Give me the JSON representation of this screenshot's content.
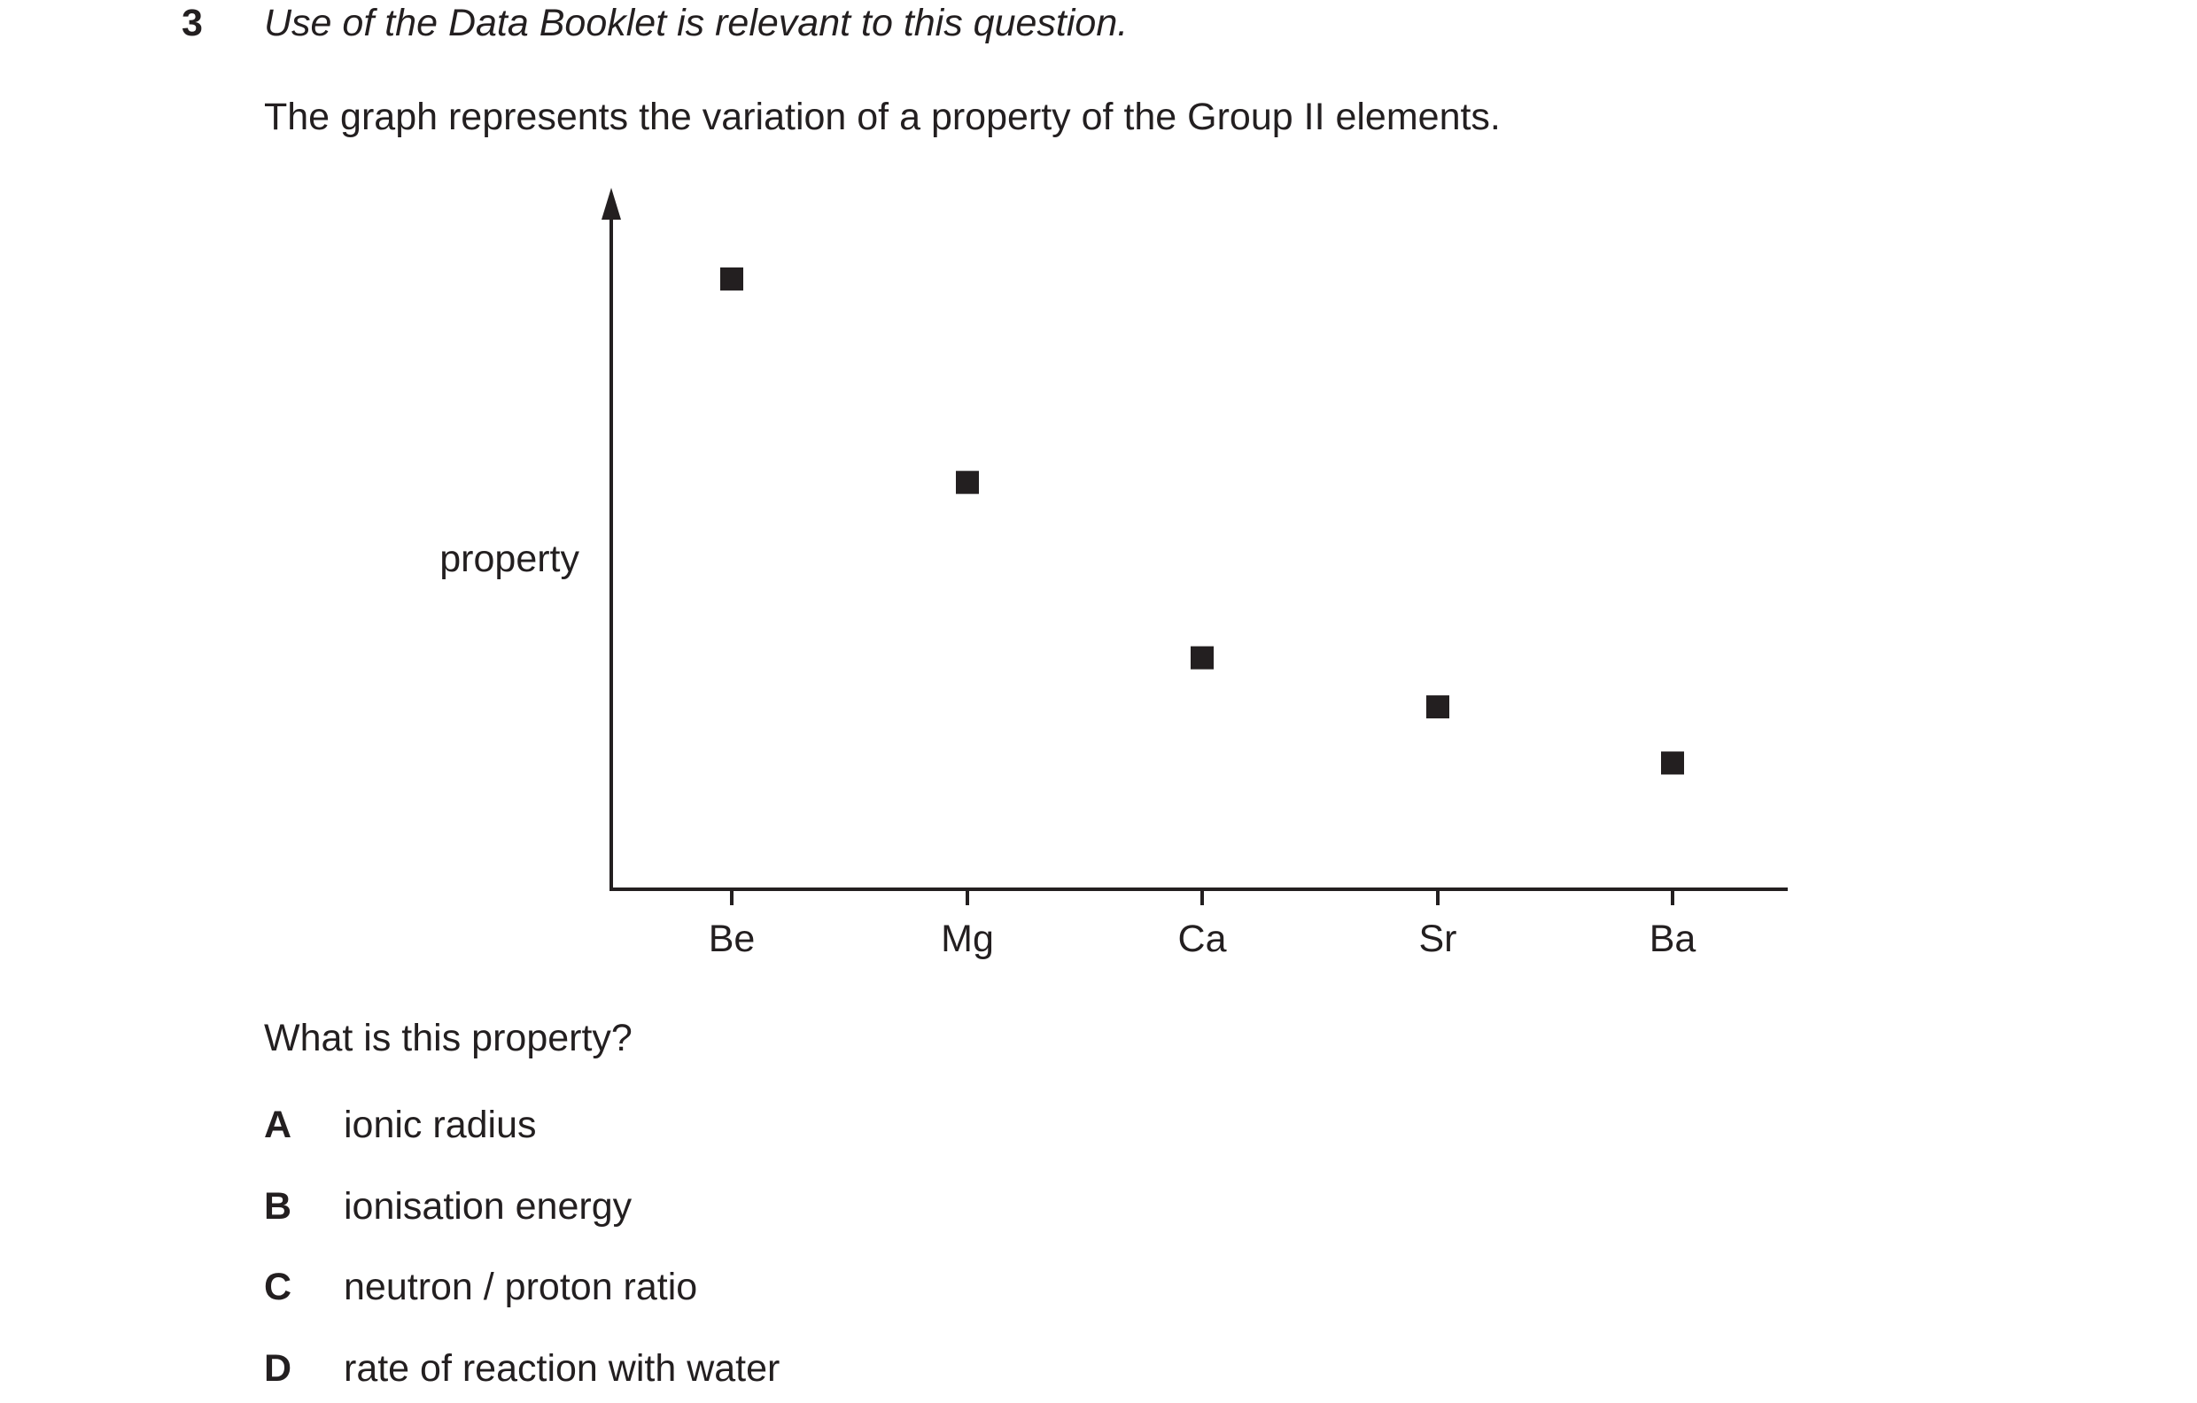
{
  "question": {
    "number": "3",
    "instruction": "Use of the Data Booklet is relevant to this question.",
    "stem": "The graph represents the variation of a property of the Group II elements.",
    "prompt": "What is this property?",
    "options": [
      {
        "letter": "A",
        "text": "ionic radius"
      },
      {
        "letter": "B",
        "text": "ionisation energy"
      },
      {
        "letter": "C",
        "text": "neutron / proton ratio"
      },
      {
        "letter": "D",
        "text": "rate of reaction with water"
      }
    ]
  },
  "chart_data": {
    "type": "scatter",
    "title": "",
    "xlabel": "",
    "ylabel": "property",
    "categories": [
      "Be",
      "Mg",
      "Ca",
      "Sr",
      "Ba"
    ],
    "values": [
      0.87,
      0.58,
      0.33,
      0.26,
      0.18
    ],
    "ylim": [
      0,
      1
    ],
    "y_ticks_shown": false,
    "grid": false,
    "marker": "square",
    "marker_color": "#231f20"
  }
}
